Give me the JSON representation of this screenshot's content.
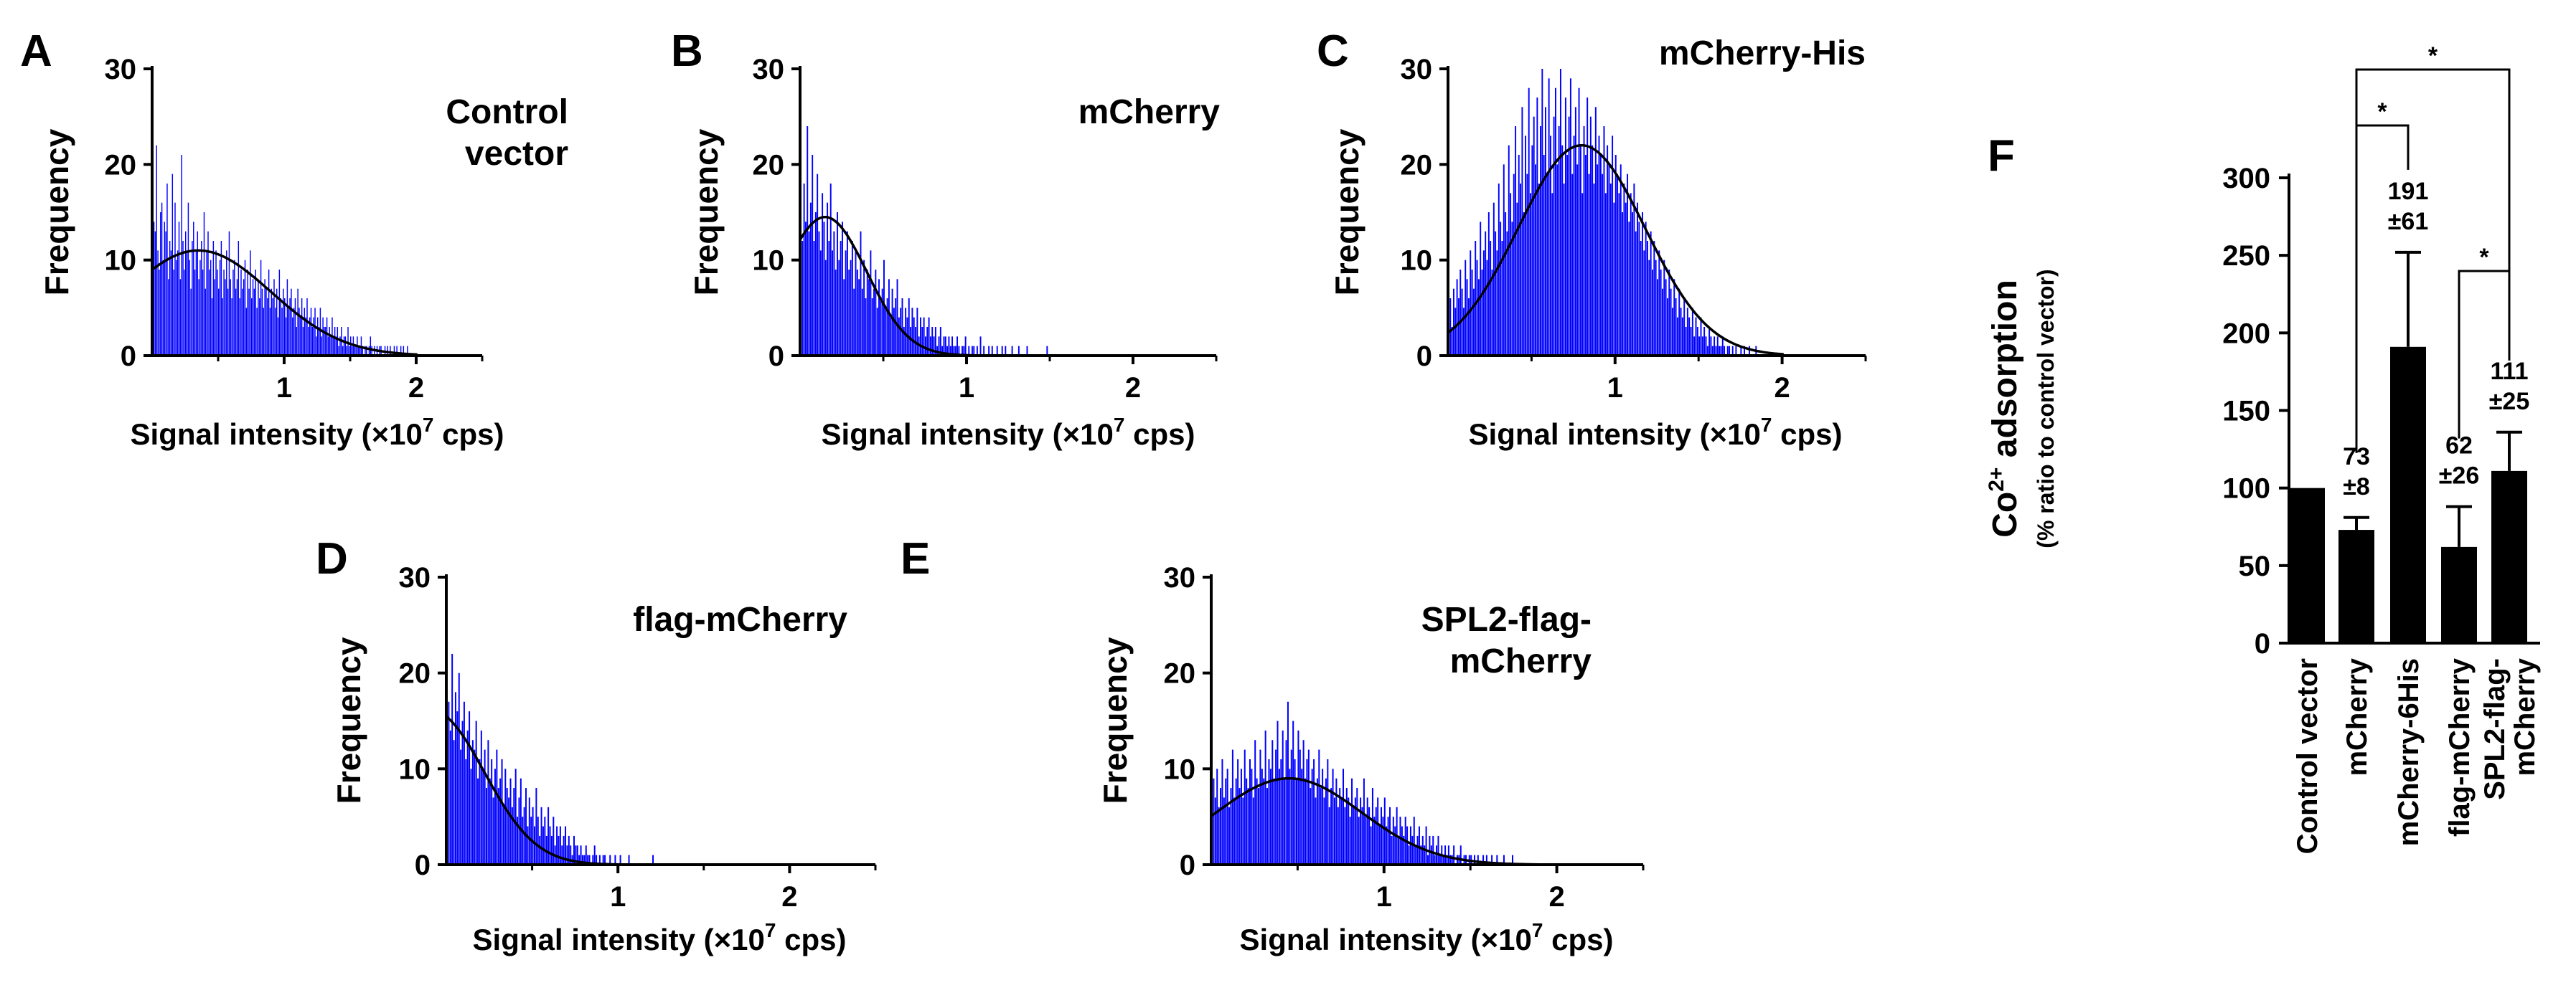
{
  "figure": {
    "bar_color": "#0000ff",
    "curve_color": "#000000"
  },
  "chart_data": [
    {
      "id": "A",
      "panel_label": "A",
      "type": "bar",
      "title_lines": [
        "Control",
        "vector"
      ],
      "xlabel_main": "Signal intensity (×10",
      "xlabel_sup": "7",
      "xlabel_tail": " cps)",
      "ylabel": "Frequency",
      "xlim": [
        0,
        2.5
      ],
      "ylim": [
        0,
        30
      ],
      "xticks": [
        1,
        2
      ],
      "xtick_labels": [
        "1",
        "2"
      ],
      "yticks": [
        0,
        10,
        20,
        30
      ],
      "ytick_labels": [
        "0",
        "10",
        "20",
        "30"
      ],
      "fit_curve": {
        "type": "gaussian",
        "peak": 11,
        "center": 0.35,
        "sd": 0.55
      },
      "histogram": {
        "bin_width": 0.01,
        "x_start": 0.0,
        "frequency": [
          10,
          14,
          13,
          22,
          11,
          9,
          15,
          16,
          10,
          14,
          13,
          18,
          8,
          12,
          11,
          19,
          9,
          16,
          10,
          11,
          14,
          8,
          21,
          12,
          9,
          13,
          11,
          16,
          10,
          7,
          12,
          14,
          9,
          11,
          13,
          8,
          10,
          12,
          9,
          15,
          7,
          11,
          13,
          9,
          10,
          6,
          12,
          8,
          11,
          9,
          7,
          10,
          12,
          6,
          9,
          8,
          11,
          7,
          13,
          8,
          6,
          9,
          10,
          7,
          8,
          12,
          6,
          9,
          7,
          8,
          10,
          5,
          9,
          7,
          11,
          6,
          8,
          7,
          9,
          5,
          8,
          6,
          10,
          7,
          5,
          8,
          7,
          6,
          9,
          5,
          7,
          6,
          8,
          5,
          7,
          4,
          9,
          6,
          5,
          7,
          6,
          4,
          8,
          5,
          6,
          7,
          4,
          5,
          6,
          3,
          7,
          5,
          4,
          6,
          3,
          5,
          4,
          6,
          3,
          4,
          5,
          3,
          4,
          5,
          2,
          4,
          3,
          5,
          2,
          4,
          3,
          3,
          4,
          2,
          3,
          2,
          4,
          2,
          3,
          2,
          3,
          1,
          2,
          3,
          1,
          2,
          2,
          1,
          3,
          1,
          2,
          1,
          2,
          1,
          1,
          2,
          1,
          1,
          2,
          1,
          0,
          1,
          1,
          0,
          1,
          2,
          1,
          0,
          1,
          0,
          1,
          0,
          1,
          1,
          0,
          0,
          1,
          0,
          1,
          0,
          1,
          0,
          0,
          1,
          0,
          1,
          0,
          0,
          1,
          0,
          1,
          0,
          0,
          1,
          0,
          0
        ]
      }
    },
    {
      "id": "B",
      "panel_label": "B",
      "type": "bar",
      "title_lines": [
        "mCherry"
      ],
      "xlabel_main": "Signal intensity (×10",
      "xlabel_sup": "7",
      "xlabel_tail": " cps)",
      "ylabel": "Frequency",
      "xlim": [
        0,
        2.5
      ],
      "ylim": [
        0,
        30
      ],
      "xticks": [
        1,
        2
      ],
      "xtick_labels": [
        "1",
        "2"
      ],
      "yticks": [
        0,
        10,
        20,
        30
      ],
      "ytick_labels": [
        "0",
        "10",
        "20",
        "30"
      ],
      "fit_curve": {
        "type": "gaussian",
        "peak": 14.5,
        "center": 0.15,
        "sd": 0.25
      },
      "histogram": {
        "bin_width": 0.01,
        "x_start": 0.0,
        "frequency": [
          17,
          12,
          18,
          14,
          24,
          13,
          16,
          21,
          12,
          15,
          19,
          13,
          11,
          17,
          14,
          10,
          16,
          12,
          18,
          11,
          13,
          9,
          15,
          10,
          12,
          14,
          8,
          11,
          13,
          9,
          10,
          12,
          7,
          11,
          9,
          8,
          13,
          7,
          10,
          6,
          9,
          8,
          11,
          6,
          7,
          9,
          5,
          8,
          6,
          7,
          10,
          5,
          6,
          8,
          4,
          7,
          5,
          6,
          8,
          4,
          5,
          6,
          3,
          5,
          4,
          6,
          3,
          5,
          4,
          3,
          5,
          2,
          4,
          3,
          4,
          2,
          3,
          4,
          2,
          3,
          2,
          3,
          1,
          2,
          3,
          1,
          2,
          2,
          1,
          2,
          1,
          2,
          1,
          1,
          2,
          1,
          0,
          1,
          1,
          2,
          0,
          1,
          0,
          1,
          1,
          0,
          1,
          0,
          2,
          0,
          1,
          0,
          0,
          1,
          0,
          1,
          0,
          0,
          1,
          0,
          0,
          1,
          0,
          1,
          0,
          0,
          0,
          1,
          0,
          0,
          0,
          1,
          0,
          0,
          0,
          0,
          1,
          0,
          0,
          0,
          0,
          0,
          0,
          0,
          0,
          0,
          0,
          0,
          1,
          0,
          0,
          0,
          0,
          0,
          0,
          0,
          0,
          0,
          0,
          0
        ]
      }
    },
    {
      "id": "C",
      "panel_label": "C",
      "type": "bar",
      "title_lines": [
        "mCherry-His"
      ],
      "xlabel_main": "Signal intensity (×10",
      "xlabel_sup": "7",
      "xlabel_tail": " cps)",
      "ylabel": "Frequency",
      "xlim": [
        0,
        2.5
      ],
      "ylim": [
        0,
        30
      ],
      "xticks": [
        1,
        2
      ],
      "xtick_labels": [
        "1",
        "2"
      ],
      "yticks": [
        0,
        10,
        20,
        30
      ],
      "ytick_labels": [
        "0",
        "10",
        "20",
        "30"
      ],
      "fit_curve": {
        "type": "gaussian",
        "peak": 22,
        "center": 0.8,
        "sd": 0.38
      },
      "histogram": {
        "bin_width": 0.01,
        "x_start": 0.0,
        "frequency": [
          4,
          6,
          3,
          7,
          5,
          8,
          6,
          9,
          7,
          5,
          10,
          8,
          6,
          11,
          9,
          7,
          12,
          10,
          8,
          14,
          9,
          11,
          13,
          10,
          15,
          12,
          9,
          16,
          13,
          11,
          18,
          14,
          12,
          20,
          15,
          13,
          22,
          17,
          14,
          19,
          24,
          16,
          21,
          18,
          26,
          15,
          23,
          19,
          28,
          17,
          22,
          25,
          20,
          27,
          18,
          24,
          30,
          21,
          26,
          19,
          29,
          23,
          17,
          25,
          28,
          20,
          24,
          30,
          22,
          18,
          27,
          21,
          25,
          29,
          19,
          23,
          26,
          20,
          28,
          22,
          17,
          24,
          21,
          27,
          19,
          25,
          22,
          18,
          26,
          20,
          23,
          21,
          19,
          24,
          17,
          22,
          20,
          18,
          23,
          16,
          21,
          19,
          17,
          20,
          15,
          18,
          16,
          19,
          14,
          17,
          15,
          18,
          13,
          16,
          14,
          12,
          15,
          11,
          14,
          12,
          10,
          13,
          9,
          12,
          10,
          8,
          11,
          9,
          7,
          10,
          8,
          6,
          9,
          7,
          5,
          8,
          6,
          4,
          7,
          5,
          4,
          6,
          3,
          5,
          4,
          3,
          5,
          2,
          4,
          3,
          2,
          4,
          2,
          3,
          2,
          1,
          3,
          2,
          1,
          2,
          1,
          2,
          1,
          1,
          2,
          1,
          0,
          1,
          1,
          0,
          1,
          0,
          1,
          0,
          0,
          1,
          0,
          1,
          0,
          0,
          1,
          0,
          0,
          0,
          1,
          0,
          0,
          0,
          0,
          0,
          0,
          0,
          0,
          0,
          0,
          0,
          0,
          0,
          0,
          0
        ]
      }
    },
    {
      "id": "D",
      "panel_label": "D",
      "type": "bar",
      "title_lines": [
        "flag-mCherry"
      ],
      "xlabel_main": "Signal intensity (×10",
      "xlabel_sup": "7",
      "xlabel_tail": " cps)",
      "ylabel": "Frequency",
      "xlim": [
        0,
        2.5
      ],
      "ylim": [
        0,
        30
      ],
      "xticks": [
        1,
        2
      ],
      "xtick_labels": [
        "1",
        "2"
      ],
      "yticks": [
        0,
        10,
        20,
        30
      ],
      "ytick_labels": [
        "0",
        "10",
        "20",
        "30"
      ],
      "fit_curve": {
        "type": "gaussian",
        "peak": 16,
        "center": -0.08,
        "sd": 0.3
      },
      "histogram": {
        "bin_width": 0.01,
        "x_start": 0.0,
        "frequency": [
          24,
          17,
          14,
          22,
          13,
          18,
          16,
          20,
          12,
          15,
          17,
          11,
          14,
          16,
          10,
          13,
          12,
          15,
          9,
          11,
          14,
          10,
          12,
          8,
          13,
          9,
          11,
          7,
          10,
          12,
          8,
          9,
          11,
          6,
          10,
          8,
          7,
          9,
          6,
          8,
          10,
          5,
          7,
          9,
          5,
          6,
          8,
          4,
          7,
          5,
          6,
          4,
          8,
          5,
          3,
          6,
          4,
          5,
          3,
          6,
          4,
          3,
          5,
          2,
          4,
          3,
          4,
          2,
          3,
          4,
          2,
          3,
          2,
          1,
          3,
          2,
          2,
          1,
          2,
          1,
          1,
          2,
          1,
          1,
          0,
          1,
          2,
          1,
          0,
          1,
          0,
          1,
          1,
          0,
          0,
          1,
          0,
          0,
          1,
          0,
          0,
          1,
          0,
          0,
          0,
          0,
          1,
          0,
          0,
          0,
          0,
          0,
          0,
          0,
          0,
          0,
          0,
          0,
          0,
          0,
          1,
          0,
          0,
          0,
          0,
          0,
          0,
          0,
          0,
          0,
          0,
          0,
          0,
          0,
          0,
          0,
          0,
          0,
          0,
          0,
          0,
          0,
          0,
          0,
          0,
          0,
          0,
          0,
          0,
          0,
          0,
          0,
          0,
          0,
          0,
          0,
          0,
          0,
          0,
          0,
          0,
          0,
          0,
          0,
          0,
          0,
          0,
          0,
          0,
          0,
          0,
          0,
          0,
          0,
          0,
          0,
          0,
          0,
          0,
          0,
          0,
          0,
          0,
          0,
          0,
          0,
          0,
          0,
          0,
          0,
          0,
          0,
          0,
          0,
          0,
          0,
          0,
          0,
          0,
          0
        ]
      }
    },
    {
      "id": "E",
      "panel_label": "E",
      "type": "bar",
      "title_lines": [
        "SPL2-flag-",
        "mCherry"
      ],
      "xlabel_main": "Signal intensity (×10",
      "xlabel_sup": "7",
      "xlabel_tail": " cps)",
      "ylabel": "Frequency",
      "xlim": [
        0,
        2.5
      ],
      "ylim": [
        0,
        30
      ],
      "xticks": [
        1,
        2
      ],
      "xtick_labels": [
        "1",
        "2"
      ],
      "yticks": [
        0,
        10,
        20,
        30
      ],
      "ytick_labels": [
        "0",
        "10",
        "20",
        "30"
      ],
      "fit_curve": {
        "type": "gaussian",
        "peak": 9,
        "center": 0.45,
        "sd": 0.42
      },
      "histogram": {
        "bin_width": 0.01,
        "x_start": 0.0,
        "frequency": [
          5,
          9,
          7,
          10,
          6,
          8,
          11,
          7,
          9,
          10,
          6,
          8,
          12,
          7,
          9,
          11,
          8,
          10,
          7,
          12,
          9,
          8,
          11,
          10,
          7,
          13,
          9,
          8,
          12,
          10,
          9,
          14,
          8,
          11,
          10,
          13,
          9,
          12,
          15,
          10,
          11,
          14,
          9,
          13,
          17,
          10,
          12,
          15,
          11,
          9,
          14,
          12,
          10,
          13,
          9,
          11,
          12,
          8,
          10,
          11,
          7,
          9,
          12,
          8,
          10,
          7,
          9,
          11,
          6,
          8,
          10,
          7,
          9,
          6,
          8,
          7,
          10,
          6,
          8,
          7,
          5,
          9,
          6,
          7,
          8,
          5,
          7,
          6,
          9,
          5,
          7,
          6,
          4,
          8,
          5,
          6,
          7,
          4,
          6,
          5,
          7,
          4,
          5,
          6,
          3,
          5,
          4,
          6,
          3,
          5,
          4,
          3,
          5,
          4,
          2,
          4,
          3,
          5,
          2,
          3,
          4,
          2,
          3,
          2,
          4,
          1,
          3,
          2,
          3,
          1,
          2,
          3,
          1,
          2,
          1,
          2,
          1,
          2,
          1,
          1,
          2,
          0,
          1,
          1,
          2,
          0,
          1,
          1,
          0,
          1,
          1,
          0,
          1,
          0,
          1,
          0,
          0,
          1,
          0,
          1,
          0,
          0,
          1,
          0,
          0,
          1,
          0,
          0,
          0,
          1,
          0,
          0,
          0,
          0,
          1,
          0,
          0,
          0,
          0,
          0,
          0,
          0,
          0,
          0,
          0,
          0,
          0,
          0,
          0,
          0,
          0,
          0,
          0,
          0,
          0,
          0,
          0,
          0,
          0,
          0
        ]
      }
    },
    {
      "id": "F",
      "panel_label": "F",
      "type": "bar",
      "ylabel_main": "Co",
      "ylabel_sup": "2+",
      "ylabel_tail": " adsorption",
      "ylabel_sub": "(% ratio to control vector)",
      "ylim": [
        0,
        300
      ],
      "yticks": [
        0,
        50,
        100,
        150,
        200,
        250,
        300
      ],
      "ytick_labels": [
        "0",
        "50",
        "100",
        "150",
        "200",
        "250",
        "300"
      ],
      "categories": [
        "Control vector",
        "mCherry",
        "mCherry-6His",
        "flag-mCherry",
        "SPL2-flag-\nmCherry"
      ],
      "category_lines": [
        [
          "Control vector"
        ],
        [
          "mCherry"
        ],
        [
          "mCherry-6His"
        ],
        [
          "flag-mCherry"
        ],
        [
          "SPL2-flag-",
          "mCherry"
        ]
      ],
      "values": [
        100,
        73,
        191,
        62,
        111
      ],
      "errors": [
        0,
        8,
        61,
        26,
        25
      ],
      "value_labels": [
        null,
        [
          "73",
          "±8"
        ],
        [
          "191",
          "±61"
        ],
        [
          "62",
          "±26"
        ],
        [
          "111",
          "±25"
        ]
      ],
      "significance": [
        {
          "from": 1,
          "to": 2,
          "label": "*"
        },
        {
          "from": 1,
          "to": 4,
          "label": "*"
        },
        {
          "from": 3,
          "to": 4,
          "label": "*"
        }
      ]
    }
  ]
}
